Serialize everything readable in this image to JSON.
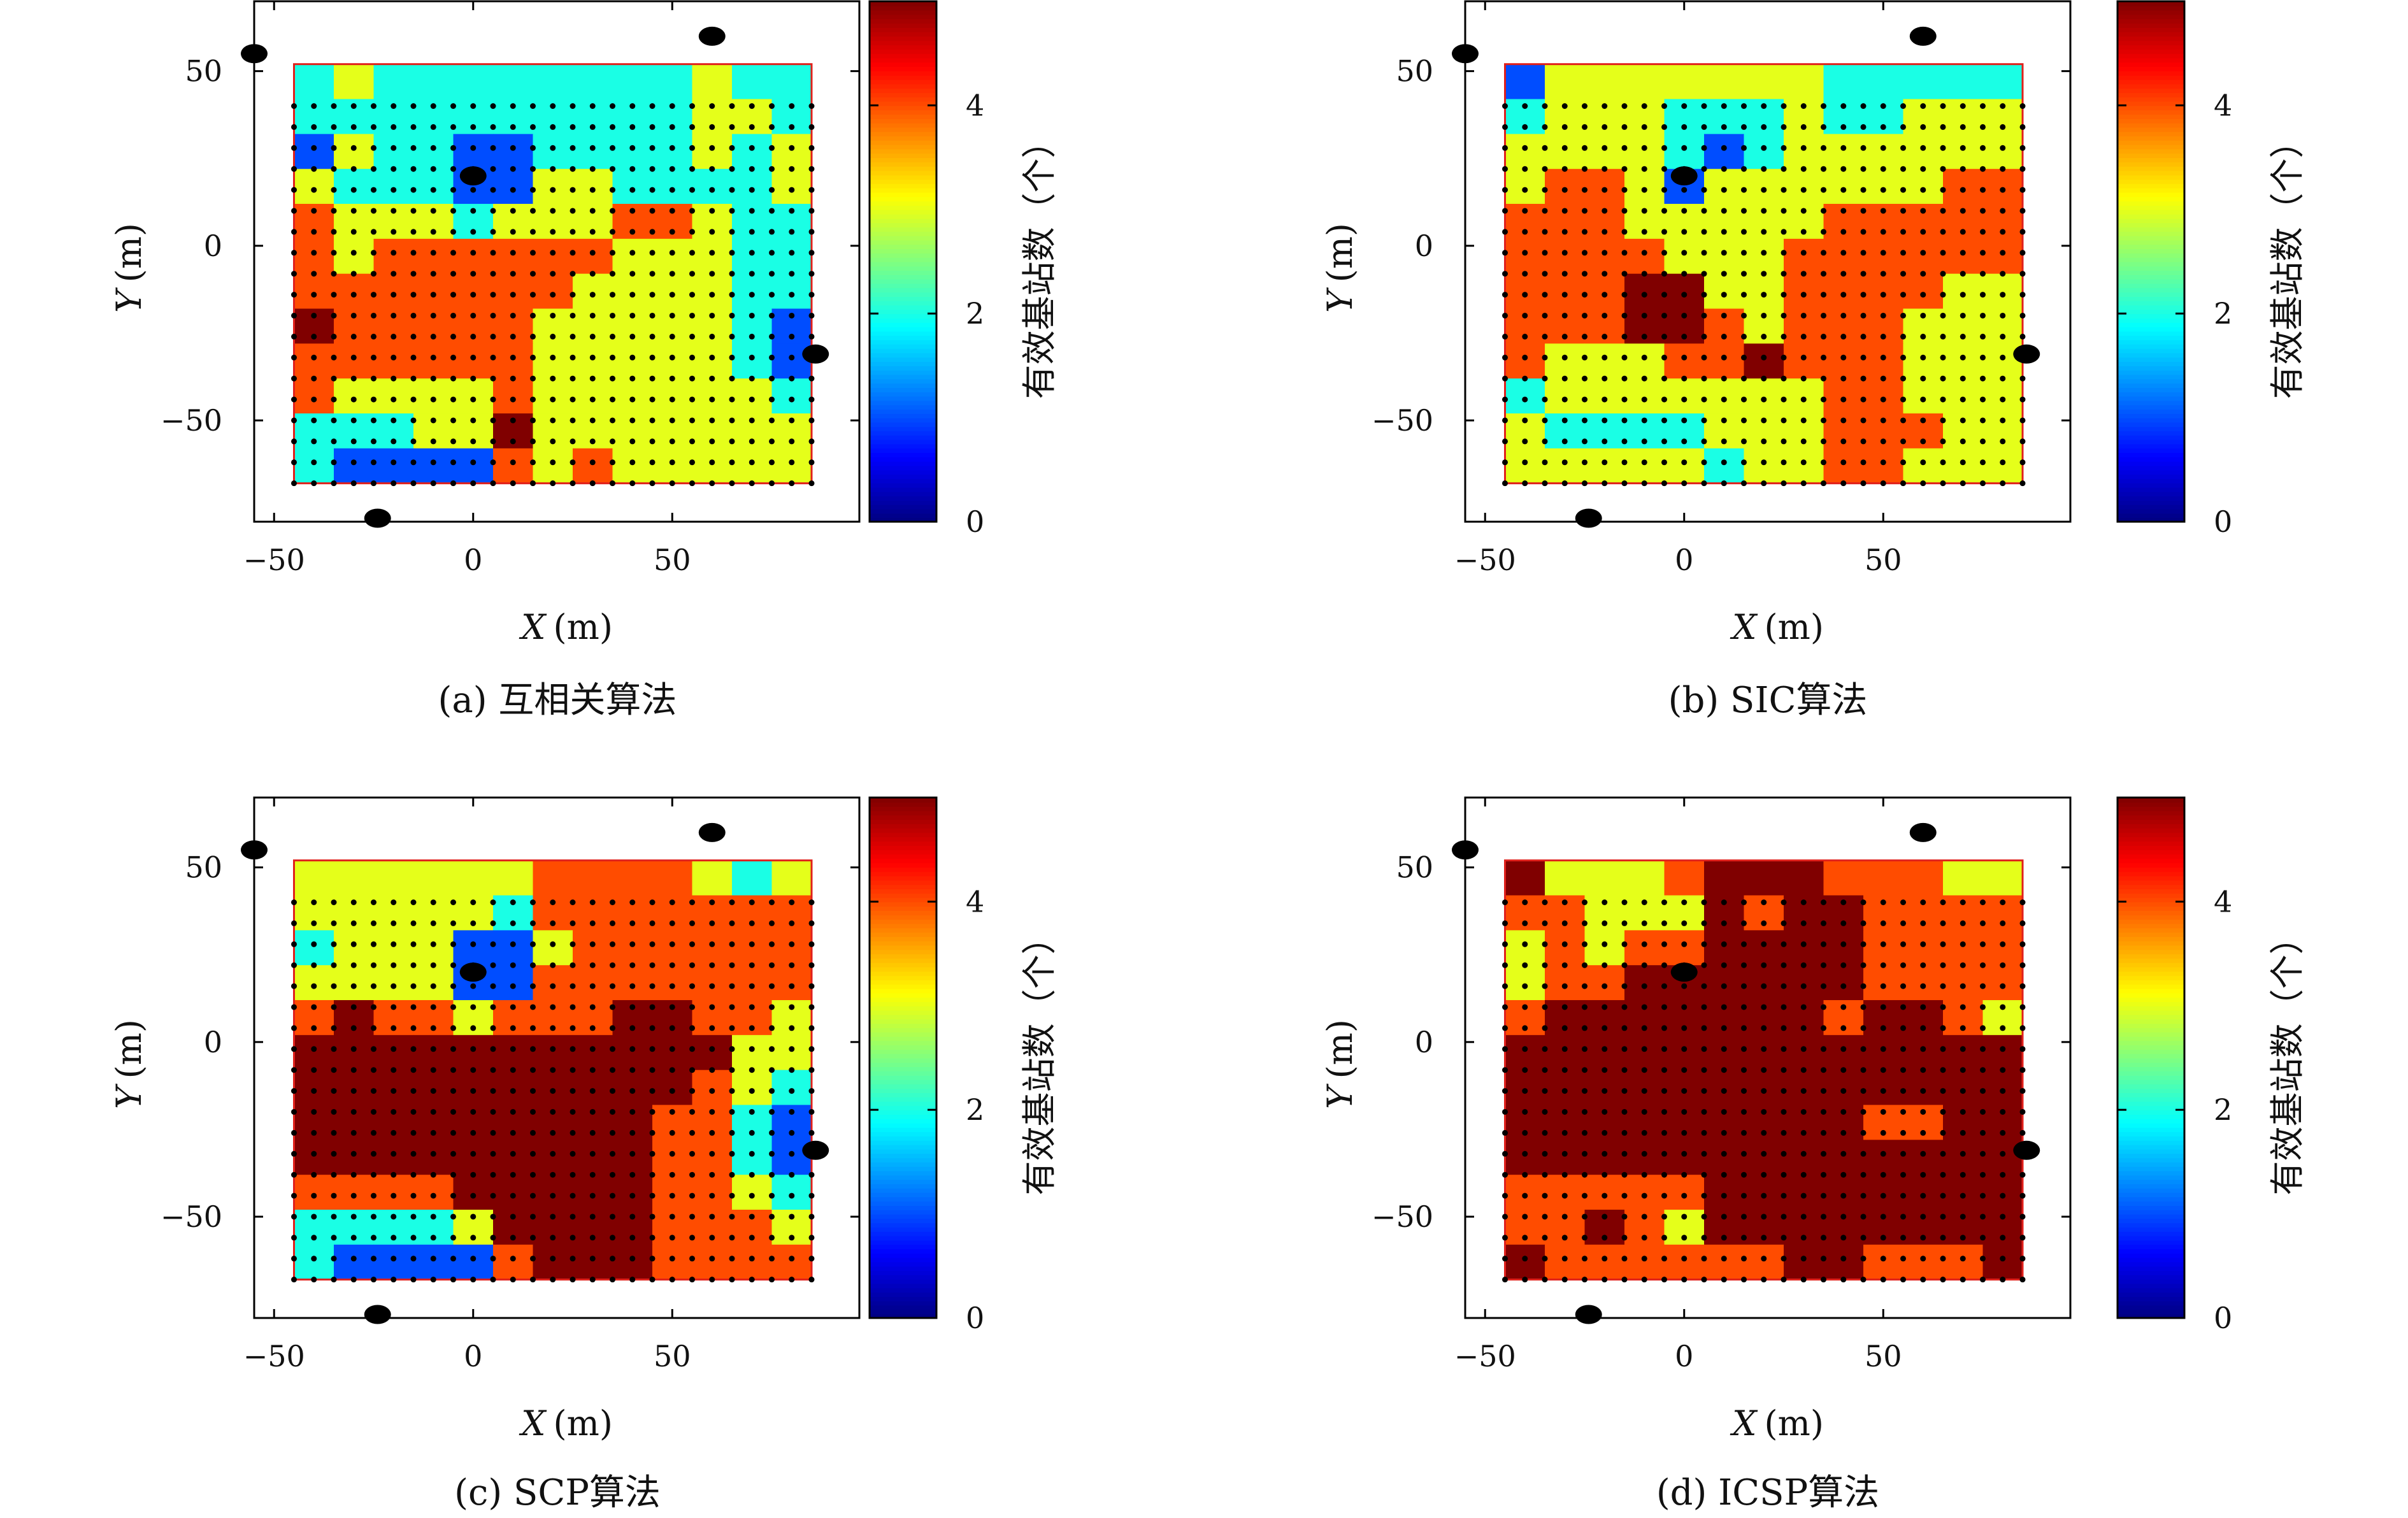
{
  "chart_data": [
    {
      "type": "heatmap",
      "caption": "(a) 互相关算法",
      "xlabel_var": "X",
      "xlabel_unit": "(m)",
      "ylabel_var": "Y",
      "ylabel_unit": "(m)",
      "xlim": [
        -55,
        97
      ],
      "ylim": [
        -79,
        70
      ],
      "x_ticks": [
        -50,
        0,
        50
      ],
      "y_ticks": [
        -50,
        0,
        50
      ],
      "colorbar": {
        "label": "有效基站数（个）",
        "range": [
          0,
          5
        ],
        "ticks": [
          0,
          2,
          4
        ],
        "colormap": "jet"
      },
      "grid_x": [
        -45,
        -35,
        -25,
        -15,
        -5,
        5,
        15,
        25,
        35,
        45,
        55,
        65,
        75
      ],
      "grid_y": [
        45,
        35,
        25,
        15,
        5,
        -5,
        -15,
        -25,
        -35,
        -45,
        -55,
        -65
      ],
      "values": [
        [
          2,
          3,
          2,
          2,
          2,
          2,
          2,
          2,
          2,
          2,
          3,
          2,
          2
        ],
        [
          2,
          2,
          2,
          2,
          2,
          2,
          2,
          2,
          2,
          2,
          3,
          3,
          2
        ],
        [
          1,
          3,
          2,
          2,
          1,
          1,
          2,
          2,
          2,
          2,
          3,
          2,
          3
        ],
        [
          3,
          2,
          2,
          2,
          1,
          1,
          3,
          3,
          2,
          2,
          2,
          2,
          3
        ],
        [
          4,
          3,
          3,
          3,
          2,
          3,
          3,
          3,
          4,
          4,
          3,
          2,
          2
        ],
        [
          4,
          3,
          4,
          4,
          4,
          4,
          4,
          4,
          3,
          3,
          3,
          2,
          2
        ],
        [
          4,
          4,
          4,
          4,
          4,
          4,
          4,
          3,
          3,
          3,
          3,
          2,
          2
        ],
        [
          5,
          4,
          4,
          4,
          4,
          4,
          3,
          3,
          3,
          3,
          3,
          2,
          1
        ],
        [
          4,
          4,
          4,
          4,
          4,
          4,
          3,
          3,
          3,
          3,
          3,
          2,
          1
        ],
        [
          4,
          3,
          3,
          3,
          3,
          4,
          3,
          3,
          3,
          3,
          3,
          3,
          2
        ],
        [
          2,
          2,
          2,
          3,
          3,
          5,
          3,
          3,
          3,
          3,
          3,
          3,
          3
        ],
        [
          2,
          1,
          1,
          1,
          1,
          4,
          3,
          4,
          3,
          3,
          3,
          3,
          3
        ]
      ],
      "stations": [
        [
          -55,
          55
        ],
        [
          60,
          60
        ],
        [
          0,
          20
        ],
        [
          86,
          -31
        ],
        [
          -24,
          -78
        ]
      ]
    },
    {
      "type": "heatmap",
      "caption": "(b) SIC算法",
      "xlabel_var": "X",
      "xlabel_unit": "(m)",
      "ylabel_var": "Y",
      "ylabel_unit": "(m)",
      "xlim": [
        -55,
        97
      ],
      "ylim": [
        -79,
        70
      ],
      "x_ticks": [
        -50,
        0,
        50
      ],
      "y_ticks": [
        -50,
        0,
        50
      ],
      "colorbar": {
        "label": "有效基站数（个）",
        "range": [
          0,
          5
        ],
        "ticks": [
          0,
          2,
          4
        ],
        "colormap": "jet"
      },
      "grid_x": [
        -45,
        -35,
        -25,
        -15,
        -5,
        5,
        15,
        25,
        35,
        45,
        55,
        65,
        75
      ],
      "grid_y": [
        45,
        35,
        25,
        15,
        5,
        -5,
        -15,
        -25,
        -35,
        -45,
        -55,
        -65
      ],
      "values": [
        [
          1,
          3,
          3,
          3,
          3,
          3,
          3,
          3,
          2,
          2,
          2,
          2,
          2
        ],
        [
          2,
          3,
          3,
          3,
          2,
          2,
          2,
          3,
          2,
          2,
          3,
          3,
          3
        ],
        [
          3,
          3,
          3,
          3,
          2,
          1,
          2,
          3,
          3,
          3,
          3,
          3,
          3
        ],
        [
          3,
          4,
          4,
          3,
          1,
          3,
          3,
          3,
          3,
          3,
          3,
          4,
          4
        ],
        [
          4,
          4,
          4,
          3,
          3,
          3,
          3,
          3,
          4,
          4,
          4,
          4,
          4
        ],
        [
          4,
          4,
          4,
          4,
          3,
          3,
          3,
          4,
          4,
          4,
          4,
          4,
          4
        ],
        [
          4,
          4,
          4,
          5,
          5,
          3,
          3,
          4,
          4,
          4,
          4,
          3,
          3
        ],
        [
          4,
          4,
          4,
          5,
          5,
          4,
          3,
          4,
          4,
          4,
          3,
          3,
          3
        ],
        [
          4,
          3,
          3,
          3,
          4,
          4,
          5,
          4,
          4,
          4,
          3,
          3,
          3
        ],
        [
          2,
          3,
          3,
          3,
          3,
          3,
          3,
          3,
          4,
          4,
          3,
          3,
          3
        ],
        [
          3,
          2,
          2,
          2,
          2,
          3,
          3,
          3,
          4,
          4,
          4,
          3,
          3
        ],
        [
          3,
          3,
          3,
          3,
          3,
          2,
          3,
          3,
          4,
          4,
          3,
          3,
          3
        ]
      ],
      "stations": [
        [
          -55,
          55
        ],
        [
          60,
          60
        ],
        [
          0,
          20
        ],
        [
          86,
          -31
        ],
        [
          -24,
          -78
        ]
      ]
    },
    {
      "type": "heatmap",
      "caption": "(c) SCP算法",
      "xlabel_var": "X",
      "xlabel_unit": "(m)",
      "ylabel_var": "Y",
      "ylabel_unit": "(m)",
      "xlim": [
        -55,
        97
      ],
      "ylim": [
        -79,
        70
      ],
      "x_ticks": [
        -50,
        0,
        50
      ],
      "y_ticks": [
        -50,
        0,
        50
      ],
      "colorbar": {
        "label": "有效基站数（个）",
        "range": [
          0,
          5
        ],
        "ticks": [
          0,
          2,
          4
        ],
        "colormap": "jet"
      },
      "grid_x": [
        -45,
        -35,
        -25,
        -15,
        -5,
        5,
        15,
        25,
        35,
        45,
        55,
        65,
        75
      ],
      "grid_y": [
        45,
        35,
        25,
        15,
        5,
        -5,
        -15,
        -25,
        -35,
        -45,
        -55,
        -65
      ],
      "values": [
        [
          3,
          3,
          3,
          3,
          3,
          3,
          4,
          4,
          4,
          4,
          3,
          2,
          3
        ],
        [
          3,
          3,
          3,
          3,
          3,
          2,
          4,
          4,
          4,
          4,
          4,
          4,
          4
        ],
        [
          2,
          3,
          3,
          3,
          1,
          1,
          3,
          4,
          4,
          4,
          4,
          4,
          4
        ],
        [
          3,
          3,
          3,
          3,
          1,
          1,
          4,
          4,
          4,
          4,
          4,
          4,
          4
        ],
        [
          4,
          5,
          4,
          4,
          3,
          4,
          4,
          4,
          5,
          5,
          4,
          4,
          3
        ],
        [
          5,
          5,
          5,
          5,
          5,
          5,
          5,
          5,
          5,
          5,
          5,
          3,
          3
        ],
        [
          5,
          5,
          5,
          5,
          5,
          5,
          5,
          5,
          5,
          5,
          4,
          3,
          2
        ],
        [
          5,
          5,
          5,
          5,
          5,
          5,
          5,
          5,
          5,
          4,
          4,
          2,
          1
        ],
        [
          5,
          5,
          5,
          5,
          5,
          5,
          5,
          5,
          5,
          4,
          4,
          2,
          1
        ],
        [
          4,
          4,
          4,
          4,
          5,
          5,
          5,
          5,
          5,
          4,
          4,
          3,
          2
        ],
        [
          2,
          2,
          2,
          2,
          3,
          5,
          5,
          5,
          5,
          4,
          4,
          4,
          3
        ],
        [
          2,
          1,
          1,
          1,
          1,
          4,
          5,
          5,
          5,
          4,
          4,
          4,
          4
        ]
      ],
      "stations": [
        [
          -55,
          55
        ],
        [
          60,
          60
        ],
        [
          0,
          20
        ],
        [
          86,
          -31
        ],
        [
          -24,
          -78
        ]
      ]
    },
    {
      "type": "heatmap",
      "caption": "(d) ICSP算法",
      "xlabel_var": "X",
      "xlabel_unit": "(m)",
      "ylabel_var": "Y",
      "ylabel_unit": "(m)",
      "xlim": [
        -55,
        97
      ],
      "ylim": [
        -79,
        70
      ],
      "x_ticks": [
        -50,
        0,
        50
      ],
      "y_ticks": [
        -50,
        0,
        50
      ],
      "colorbar": {
        "label": "有效基站数（个）",
        "range": [
          0,
          5
        ],
        "ticks": [
          0,
          2,
          4
        ],
        "colormap": "jet"
      },
      "grid_x": [
        -45,
        -35,
        -25,
        -15,
        -5,
        5,
        15,
        25,
        35,
        45,
        55,
        65,
        75
      ],
      "grid_y": [
        45,
        35,
        25,
        15,
        5,
        -5,
        -15,
        -25,
        -35,
        -45,
        -55,
        -65
      ],
      "values": [
        [
          5,
          3,
          3,
          3,
          4,
          5,
          5,
          5,
          4,
          4,
          4,
          3,
          3
        ],
        [
          4,
          4,
          3,
          3,
          3,
          5,
          4,
          5,
          5,
          4,
          4,
          4,
          4
        ],
        [
          3,
          4,
          3,
          4,
          4,
          5,
          5,
          5,
          5,
          4,
          4,
          4,
          4
        ],
        [
          3,
          4,
          4,
          5,
          5,
          5,
          5,
          5,
          5,
          4,
          4,
          4,
          4
        ],
        [
          4,
          5,
          5,
          5,
          5,
          5,
          5,
          5,
          4,
          5,
          5,
          4,
          3
        ],
        [
          5,
          5,
          5,
          5,
          5,
          5,
          5,
          5,
          5,
          5,
          5,
          5,
          5
        ],
        [
          5,
          5,
          5,
          5,
          5,
          5,
          5,
          5,
          5,
          5,
          5,
          5,
          5
        ],
        [
          5,
          5,
          5,
          5,
          5,
          5,
          5,
          5,
          5,
          4,
          4,
          5,
          5
        ],
        [
          5,
          5,
          5,
          5,
          5,
          5,
          5,
          5,
          5,
          5,
          5,
          5,
          5
        ],
        [
          4,
          4,
          4,
          4,
          4,
          5,
          5,
          5,
          5,
          5,
          5,
          5,
          5
        ],
        [
          4,
          4,
          5,
          4,
          3,
          5,
          5,
          5,
          5,
          5,
          5,
          5,
          5
        ],
        [
          5,
          4,
          4,
          4,
          4,
          4,
          4,
          5,
          5,
          4,
          4,
          4,
          5
        ]
      ],
      "stations": [
        [
          -55,
          55
        ],
        [
          60,
          60
        ],
        [
          0,
          20
        ],
        [
          86,
          -31
        ],
        [
          -24,
          -78
        ]
      ]
    }
  ]
}
